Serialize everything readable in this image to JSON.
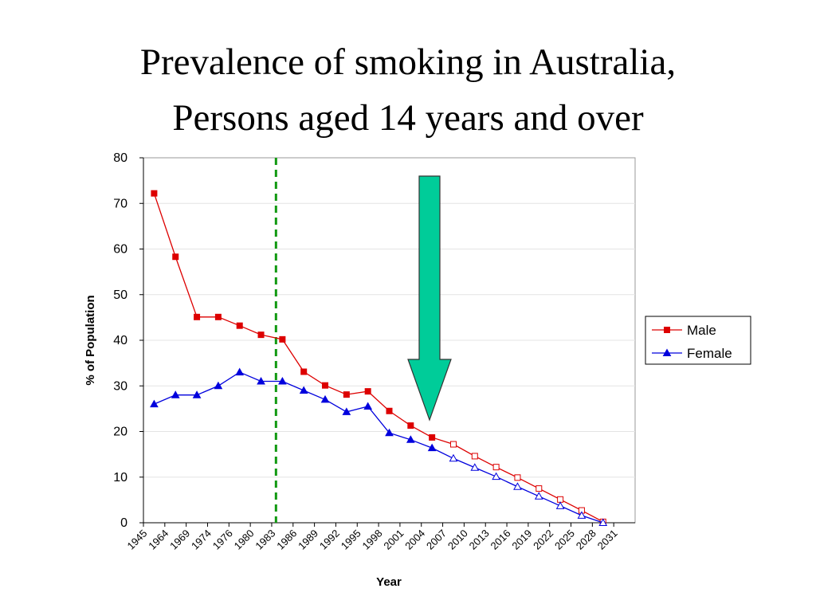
{
  "chart_data": {
    "type": "line",
    "title": [
      "Prevalence of smoking in Australia,",
      "Persons aged 14 years and over"
    ],
    "x_label": "Year",
    "y_label": "% of Population",
    "categories": [
      "1945",
      "1964",
      "1969",
      "1974",
      "1976",
      "1980",
      "1983",
      "1986",
      "1989",
      "1992",
      "1995",
      "1998",
      "2001",
      "2004",
      "2007",
      "2010",
      "2013",
      "2016",
      "2019",
      "2022",
      "2025",
      "2028",
      "2031"
    ],
    "series": [
      {
        "name": "Male",
        "color": "#dd0000",
        "marker": "square",
        "values": [
          72.2,
          58.3,
          45.1,
          45.1,
          43.2,
          41.2,
          40.2,
          33.1,
          30.1,
          28.1,
          28.8,
          24.5,
          21.3,
          18.7,
          17.2,
          14.6,
          12.2,
          9.9,
          7.5,
          5.1,
          2.7,
          0.2,
          null
        ]
      },
      {
        "name": "Female",
        "color": "#0000dd",
        "marker": "triangle",
        "values": [
          26,
          28,
          28,
          30,
          33,
          31,
          31,
          29,
          27,
          24.3,
          25.5,
          19.7,
          18.2,
          16.4,
          14.1,
          12.1,
          10.1,
          7.9,
          5.8,
          3.7,
          1.6,
          0,
          null
        ]
      }
    ],
    "projected_from": "2007",
    "reference_line": {
      "category": "1983",
      "color": "#119911",
      "dashed": true
    },
    "ylim": [
      0,
      80
    ],
    "yticks": [
      0,
      10,
      20,
      30,
      40,
      50,
      60,
      70,
      80
    ],
    "grid": true,
    "legend": "right"
  }
}
